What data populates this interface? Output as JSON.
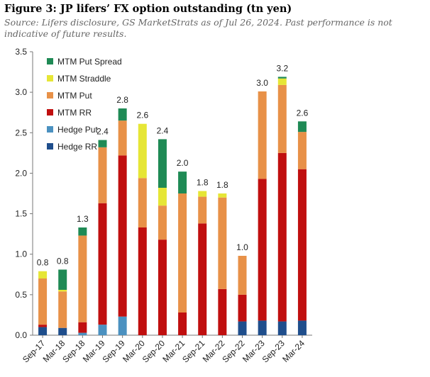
{
  "figure": {
    "title": "Figure 3: JP lifers’ FX option outstanding (tn yen)",
    "source": "Source: Lifers disclosure, GS MarketStrats as of Jul 26, 2024. Past performance is not indicative of future results."
  },
  "chart_data": {
    "type": "bar",
    "stacked": true,
    "categories": [
      "Sep-17",
      "Mar-18",
      "Sep-18",
      "Mar-19",
      "Sep-19",
      "Mar-20",
      "Sep-20",
      "Mar-21",
      "Sep-21",
      "Mar-22",
      "Sep-22",
      "Mar-23",
      "Sep-23",
      "Mar-24"
    ],
    "series": [
      {
        "name": "Hedge RR",
        "color": "#1f4e8c",
        "values": [
          0.1,
          0.09,
          0.0,
          0.0,
          0.0,
          0.0,
          0.0,
          0.0,
          0.0,
          0.0,
          0.17,
          0.18,
          0.17,
          0.18
        ]
      },
      {
        "name": "Hedge Put",
        "color": "#4b91c0",
        "values": [
          0.0,
          0.0,
          0.03,
          0.13,
          0.23,
          0.0,
          0.0,
          0.0,
          0.0,
          0.0,
          0.0,
          0.0,
          0.0,
          0.0
        ]
      },
      {
        "name": "MTM RR",
        "color": "#c00f0f",
        "values": [
          0.03,
          0.0,
          0.13,
          1.5,
          1.99,
          1.33,
          1.18,
          0.28,
          1.38,
          0.57,
          0.33,
          1.75,
          2.08,
          1.87
        ]
      },
      {
        "name": "MTM Put",
        "color": "#e89148",
        "values": [
          0.57,
          0.45,
          1.07,
          0.69,
          0.43,
          0.61,
          0.42,
          1.47,
          0.33,
          1.13,
          0.48,
          1.08,
          0.84,
          0.46
        ]
      },
      {
        "name": "MTM Straddle",
        "color": "#e6e636",
        "values": [
          0.09,
          0.02,
          0.0,
          0.0,
          0.0,
          0.67,
          0.22,
          0.0,
          0.07,
          0.05,
          0.0,
          0.0,
          0.08,
          0.0
        ]
      },
      {
        "name": "MTM Put Spread",
        "color": "#1f8a55",
        "values": [
          0.0,
          0.25,
          0.1,
          0.09,
          0.15,
          0.0,
          0.6,
          0.27,
          0.0,
          0.0,
          0.0,
          0.0,
          0.02,
          0.13
        ]
      }
    ],
    "totals": [
      "0.8",
      "0.8",
      "1.3",
      "2.4",
      "2.8",
      "2.6",
      "2.4",
      "2.0",
      "1.8",
      "1.8",
      "1.0",
      "3.0",
      "3.2",
      "2.6"
    ],
    "ylim": [
      0,
      3.5
    ],
    "yticks": [
      "0.0",
      "0.5",
      "1.0",
      "1.5",
      "2.0",
      "2.5",
      "3.0",
      "3.5"
    ],
    "legend_order": [
      "MTM Put Spread",
      "MTM Straddle",
      "MTM Put",
      "MTM RR",
      "Hedge Put",
      "Hedge RR"
    ],
    "legend_position": "top-left",
    "grid": false
  }
}
